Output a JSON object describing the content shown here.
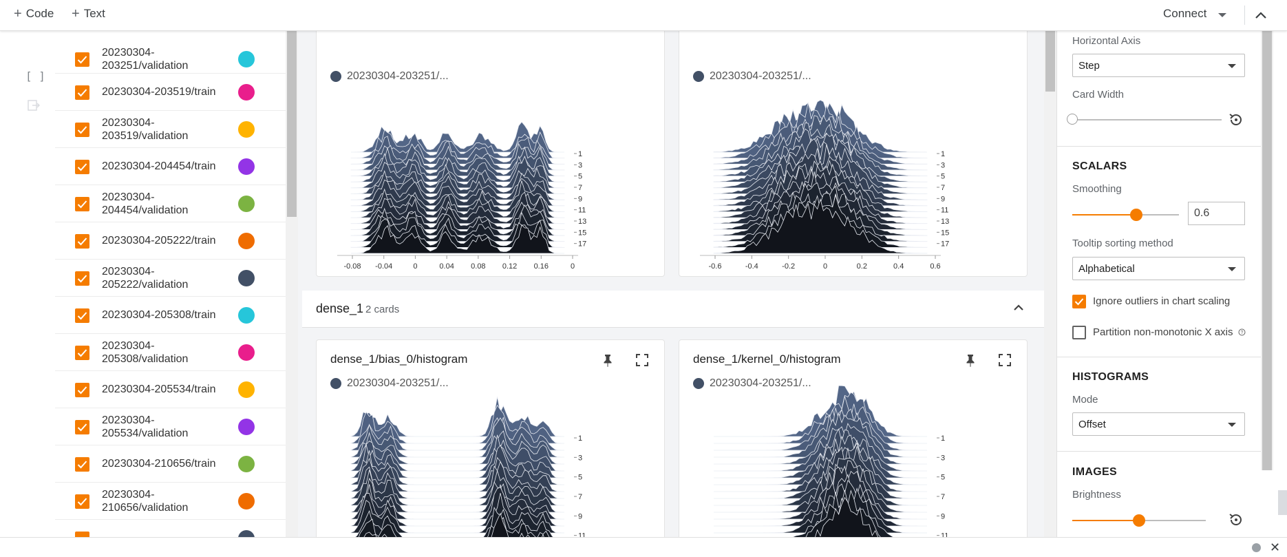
{
  "toolbar": {
    "code_label": "Code",
    "text_label": "Text",
    "connect_label": "Connect"
  },
  "runs": [
    {
      "label": "20230304-203251/validation",
      "color": "#26c6da"
    },
    {
      "label": "20230304-203519/train",
      "color": "#e91e8c"
    },
    {
      "label": "20230304-203519/validation",
      "color": "#ffb300"
    },
    {
      "label": "20230304-204454/train",
      "color": "#9334e6"
    },
    {
      "label": "20230304-204454/validation",
      "color": "#7cb342"
    },
    {
      "label": "20230304-205222/train",
      "color": "#ef6c00"
    },
    {
      "label": "20230304-205222/validation",
      "color": "#425066"
    },
    {
      "label": "20230304-205308/train",
      "color": "#26c6da"
    },
    {
      "label": "20230304-205308/validation",
      "color": "#e91e8c"
    },
    {
      "label": "20230304-205534/train",
      "color": "#ffb300"
    },
    {
      "label": "20230304-205534/validation",
      "color": "#9334e6"
    },
    {
      "label": "20230304-210656/train",
      "color": "#7cb342"
    },
    {
      "label": "20230304-210656/validation",
      "color": "#ef6c00"
    }
  ],
  "cards_top": [
    {
      "run": "20230304-203251/...",
      "x_ticks": [
        "-0.08",
        "-0.04",
        "0",
        "0.04",
        "0.08",
        "0.12",
        "0.16",
        "0"
      ],
      "y_ticks": [
        "1",
        "3",
        "5",
        "7",
        "9",
        "11",
        "13",
        "15",
        "17"
      ]
    },
    {
      "run": "20230304-203251/...",
      "x_ticks": [
        "-0.6",
        "-0.4",
        "-0.2",
        "0",
        "0.2",
        "0.4",
        "0.6"
      ],
      "y_ticks": [
        "1",
        "3",
        "5",
        "7",
        "9",
        "11",
        "13",
        "15",
        "17"
      ]
    }
  ],
  "group": {
    "name": "dense_1",
    "count": "2 cards"
  },
  "cards_bottom": [
    {
      "title": "dense_1/bias_0/histogram",
      "run": "20230304-203251/...",
      "y_ticks": [
        "1",
        "3",
        "5",
        "7",
        "9",
        "11"
      ]
    },
    {
      "title": "dense_1/kernel_0/histogram",
      "run": "20230304-203251/...",
      "y_ticks": [
        "1",
        "3",
        "5",
        "7",
        "9",
        "11"
      ]
    }
  ],
  "settings": {
    "horizontal_axis_label": "Horizontal Axis",
    "horizontal_axis_value": "Step",
    "card_width_label": "Card Width",
    "scalars_heading": "SCALARS",
    "smoothing_label": "Smoothing",
    "smoothing_value": "0.6",
    "tooltip_label": "Tooltip sorting method",
    "tooltip_value": "Alphabetical",
    "ignore_outliers_label": "Ignore outliers in chart scaling",
    "partition_label": "Partition non-monotonic X axis",
    "histograms_heading": "HISTOGRAMS",
    "mode_label": "Mode",
    "mode_value": "Offset",
    "images_heading": "IMAGES",
    "brightness_label": "Brightness",
    "accent": "#f57c00"
  }
}
